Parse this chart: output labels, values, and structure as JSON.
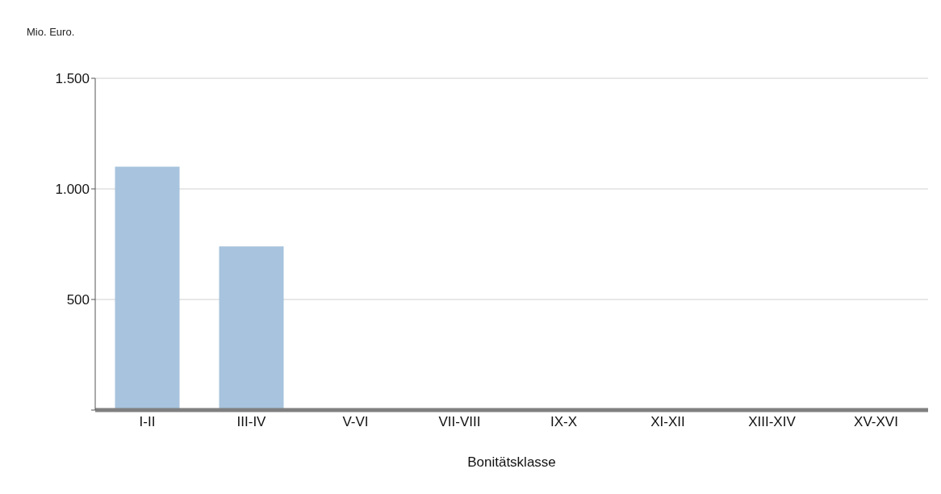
{
  "chart_data": {
    "type": "bar",
    "ylabel": "Mio. Euro.",
    "xlabel": "Bonitätsklasse",
    "categories": [
      "I-II",
      "III-IV",
      "V-VI",
      "VII-VIII",
      "IX-X",
      "XI-XII",
      "XIII-XIV",
      "XV-XVI"
    ],
    "values": [
      1100,
      740,
      0,
      0,
      0,
      0,
      0,
      0
    ],
    "color": "#a7c3dd",
    "ylim": [
      0,
      1500
    ],
    "yticks": [
      {
        "value": 0,
        "label": null
      },
      500,
      {
        "value": 1000,
        "label": "1.000"
      },
      {
        "value": 1500,
        "label": "1.500"
      }
    ],
    "grid": "y"
  }
}
